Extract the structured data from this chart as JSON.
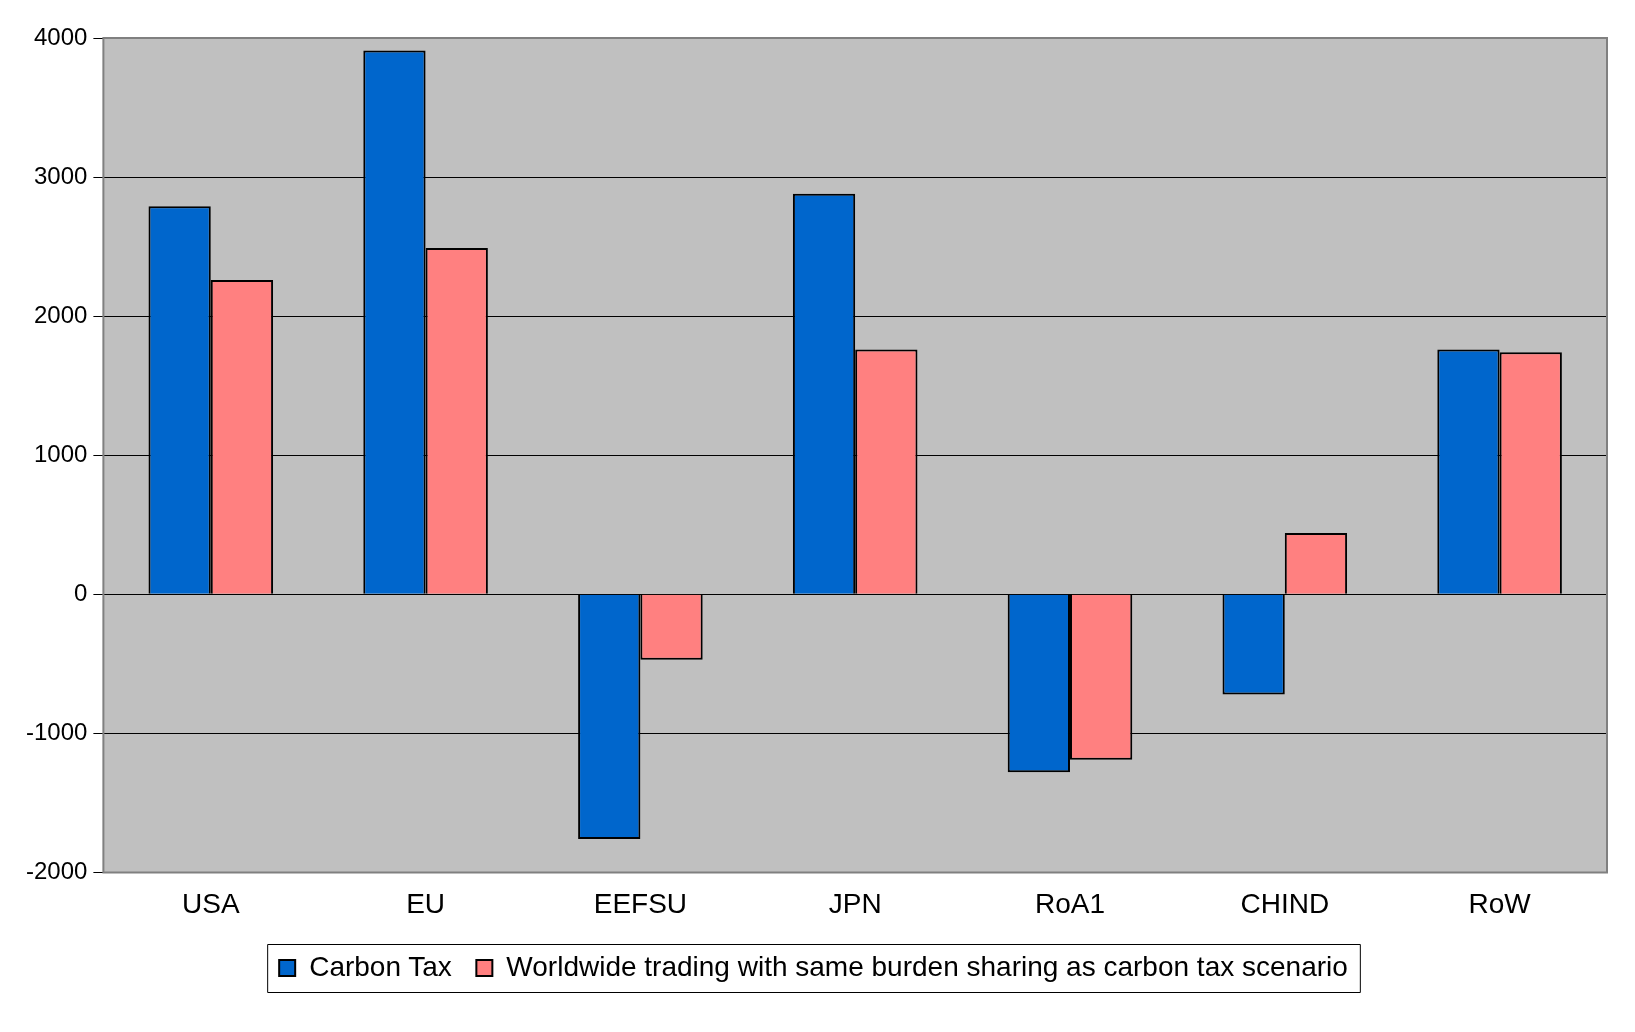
{
  "chart_data": {
    "type": "bar",
    "categories": [
      "USA",
      "EU",
      "EEFSU",
      "JPN",
      "RoA1",
      "CHIND",
      "RoW"
    ],
    "series": [
      {
        "name": "Carbon Tax",
        "color": "#0066cc",
        "values": [
          2790,
          3910,
          -1760,
          2880,
          -1280,
          -720,
          1760
        ]
      },
      {
        "name": "Worldwide trading with same burden sharing as carbon tax scenario",
        "color": "#ff8080",
        "values": [
          2260,
          2490,
          -470,
          1760,
          -1190,
          440,
          1740
        ]
      }
    ],
    "ylim": [
      -2000,
      4000
    ],
    "yticks": [
      -2000,
      -1000,
      0,
      1000,
      2000,
      3000,
      4000
    ],
    "grid": "y",
    "legend": "bottom"
  }
}
